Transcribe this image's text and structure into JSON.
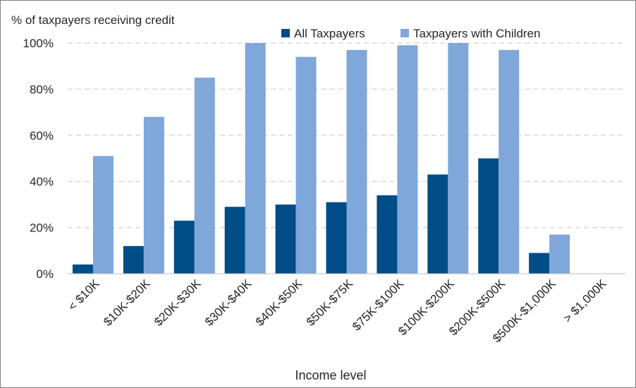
{
  "chart_data": {
    "type": "bar",
    "title": "",
    "ylabel": "% of taxpayers receiving credit",
    "xlabel": "Income level",
    "ylim": [
      0,
      100
    ],
    "yticks": [
      0,
      20,
      40,
      60,
      80,
      100
    ],
    "ytick_labels": [
      "0%",
      "20%",
      "40%",
      "60%",
      "80%",
      "100%"
    ],
    "grid": true,
    "legend_position": "top",
    "categories": [
      "< $10K",
      "$10K-$20K",
      "$20K-$30K",
      "$30K-$40K",
      "$40K-$50K",
      "$50K-$75K",
      "$75K-$100K",
      "$100K-$200K",
      "$200K-$500K",
      "$500K-$1,000K",
      "> $1,000K"
    ],
    "series": [
      {
        "name": "All Taxpayers",
        "color": "#004c86",
        "values": [
          4,
          12,
          23,
          29,
          30,
          31,
          34,
          43,
          50,
          9,
          0
        ]
      },
      {
        "name": "Taxpayers with Children",
        "color": "#7fa7d9",
        "values": [
          51,
          68,
          85,
          100,
          94,
          97,
          99,
          100,
          97,
          17,
          0
        ]
      }
    ]
  }
}
